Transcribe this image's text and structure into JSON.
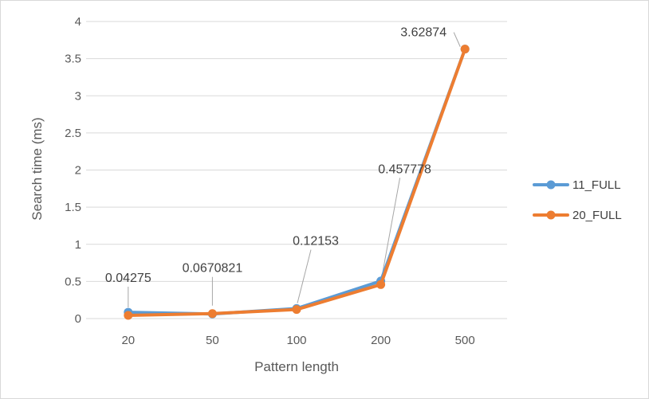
{
  "chart_data": {
    "type": "line",
    "categories": [
      "20",
      "50",
      "100",
      "200",
      "500"
    ],
    "series": [
      {
        "name": "11_FULL",
        "color": "#5B9BD5",
        "values": [
          0.085,
          0.062,
          0.135,
          0.505,
          3.62874
        ]
      },
      {
        "name": "20_FULL",
        "color": "#ED7D31",
        "values": [
          0.04275,
          0.0670821,
          0.12153,
          0.457778,
          3.62874
        ]
      }
    ],
    "data_labels": [
      "0.04275",
      "0.0670821",
      "0.12153",
      "0.457778",
      "3.62874"
    ],
    "xlabel": "Pattern length",
    "ylabel": "Search time (ms)",
    "ylim": [
      0,
      4
    ],
    "yticks": [
      "0",
      "0.5",
      "1",
      "1.5",
      "2",
      "2.5",
      "3",
      "3.5",
      "4"
    ],
    "grid": true,
    "legend_position": "right"
  }
}
